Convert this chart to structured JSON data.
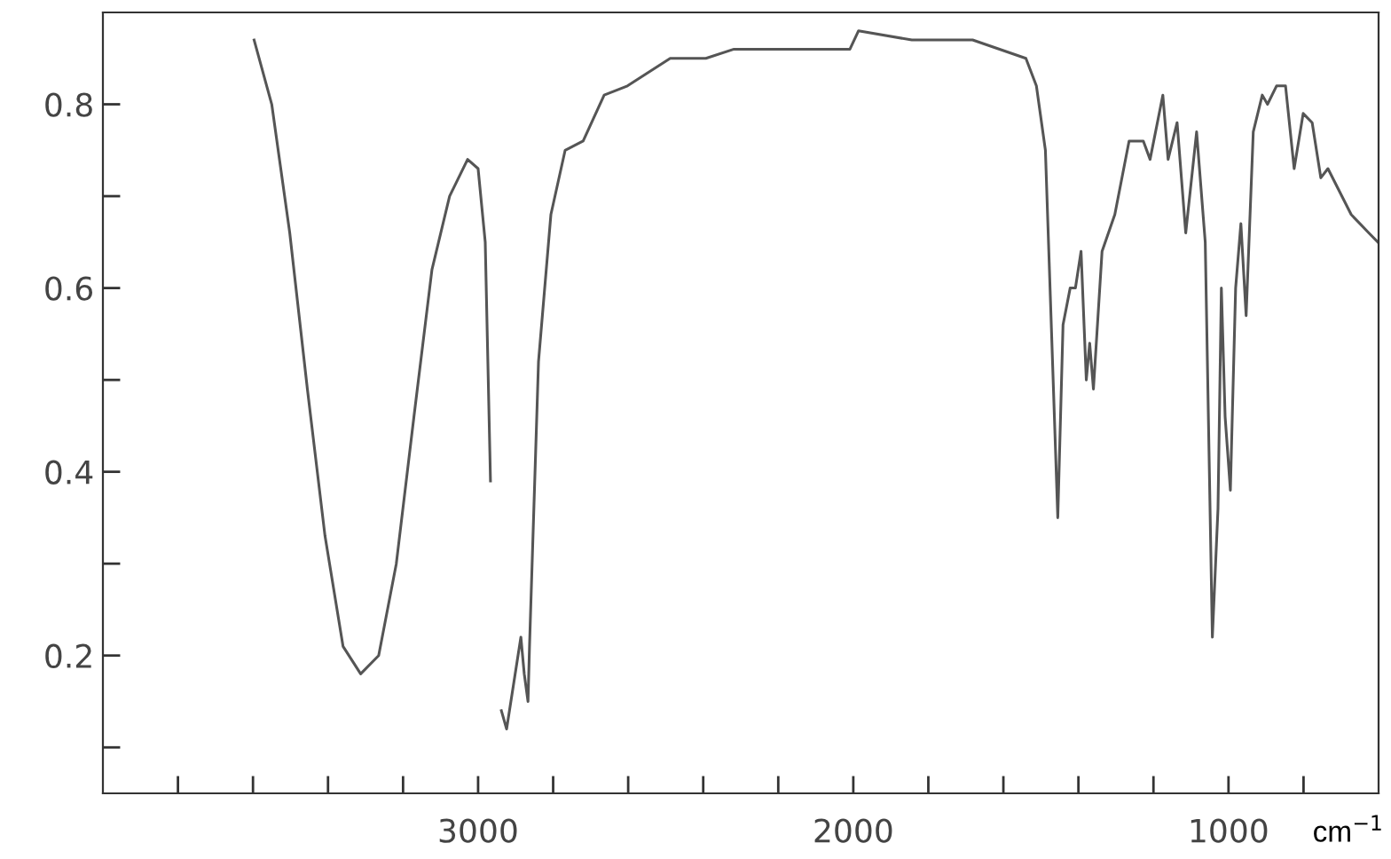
{
  "chart_data": {
    "type": "line",
    "xlabel": "cm$^{−1}$",
    "x": [
      3597,
      3550,
      3502,
      3455,
      3408,
      3360,
      3313,
      3265,
      3218,
      3171,
      3123,
      3076,
      3028,
      3000,
      2981,
      2967,
      2957,
      2938,
      2924,
      2905,
      2886,
      2877,
      2867,
      2863,
      2839,
      2806,
      2768,
      2720,
      2664,
      2602,
      2488,
      2393,
      2318,
      2156,
      2009,
      1986,
      1844,
      1682,
      1540,
      1512,
      1488,
      1469,
      1455,
      1441,
      1422,
      1408,
      1393,
      1379,
      1370,
      1360,
      1337,
      1303,
      1265,
      1227,
      1209,
      1175,
      1161,
      1137,
      1114,
      1085,
      1062,
      1043,
      1028,
      1019,
      1009,
      995,
      981,
      967,
      953,
      934,
      910,
      896,
      872,
      848,
      825,
      801,
      777,
      754,
      735,
      673,
      626,
      602
    ],
    "series": [
      {
        "color": "#555555",
        "values": [
          0.87,
          0.8,
          0.66,
          0.49,
          0.33,
          0.21,
          0.18,
          0.2,
          0.3,
          0.46,
          0.62,
          0.7,
          0.74,
          0.73,
          0.65,
          0.39,
          null,
          0.14,
          0.12,
          0.17,
          0.22,
          0.18,
          0.15,
          0.21,
          0.52,
          0.68,
          0.75,
          0.76,
          0.81,
          0.82,
          0.85,
          0.85,
          0.86,
          0.86,
          0.86,
          0.88,
          0.87,
          0.87,
          0.85,
          0.82,
          0.75,
          0.52,
          0.35,
          0.56,
          0.6,
          0.6,
          0.64,
          0.5,
          0.54,
          0.49,
          0.64,
          0.68,
          0.76,
          0.76,
          0.74,
          0.81,
          0.74,
          0.78,
          0.66,
          0.77,
          0.65,
          0.22,
          0.36,
          0.6,
          0.46,
          0.38,
          0.6,
          0.67,
          0.57,
          0.77,
          0.81,
          0.8,
          0.82,
          0.82,
          0.73,
          0.79,
          0.78,
          0.72,
          0.73,
          0.68,
          0.66,
          0.65
        ]
      }
    ],
    "xlim": [
      4000,
      600
    ],
    "xticks": [
      {
        "value": 3800,
        "label": null
      },
      {
        "value": 3600,
        "label": null
      },
      {
        "value": 3400,
        "label": null
      },
      {
        "value": 3200,
        "label": null
      },
      3000,
      {
        "value": 2800,
        "label": null
      },
      {
        "value": 2600,
        "label": null
      },
      {
        "value": 2400,
        "label": null
      },
      {
        "value": 2200,
        "label": null
      },
      2000,
      {
        "value": 1800,
        "label": null
      },
      {
        "value": 1600,
        "label": null
      },
      {
        "value": 1400,
        "label": null
      },
      {
        "value": 1200,
        "label": null
      },
      1000,
      {
        "value": 800,
        "label": null
      }
    ],
    "ylim": [
      0.05,
      0.9
    ],
    "yticks": [
      {
        "value": 0.1,
        "label": null
      },
      0.2,
      {
        "value": 0.3,
        "label": null
      },
      0.4,
      {
        "value": 0.5,
        "label": null
      },
      0.6,
      {
        "value": 0.7,
        "label": null
      },
      0.8
    ],
    "grid": false,
    "marker": "none",
    "line_style": "solid"
  }
}
